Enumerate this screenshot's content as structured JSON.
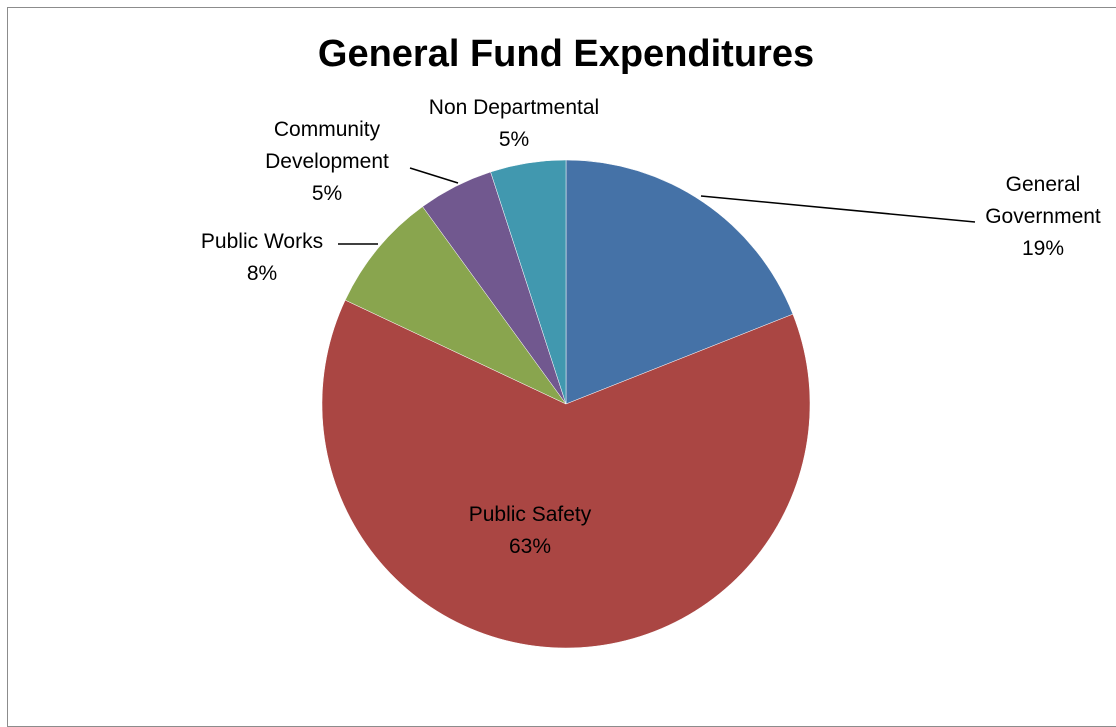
{
  "chart_data": {
    "type": "pie",
    "title": "General Fund Expenditures",
    "slices": [
      {
        "label": "General Government",
        "value": 19,
        "value_label": "19%",
        "color": "#4572a7"
      },
      {
        "label": "Public Safety",
        "value": 63,
        "value_label": "63%",
        "color": "#aa4643"
      },
      {
        "label": "Public Works",
        "value": 8,
        "value_label": "8%",
        "color": "#89a54e"
      },
      {
        "label": "Community Development",
        "value": 5,
        "value_label": "5%",
        "color": "#71588f"
      },
      {
        "label": "Non Departmental",
        "value": 5,
        "value_label": "5%",
        "color": "#4198af"
      }
    ],
    "label_lines": {
      "General Government": [
        "General",
        "Government"
      ],
      "Public Safety": [
        "Public Safety"
      ],
      "Public Works": [
        "Public Works"
      ],
      "Community Development": [
        "Community",
        "Development"
      ],
      "Non Departmental": [
        "Non Departmental"
      ]
    },
    "start_angle": "12 o'clock",
    "direction": "clockwise",
    "legend": "none"
  }
}
